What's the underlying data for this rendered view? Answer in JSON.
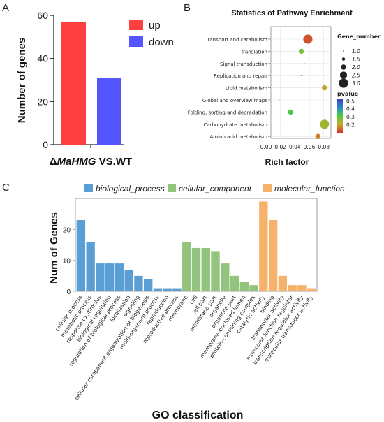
{
  "panels": {
    "a": "A",
    "b": "B",
    "c": "C"
  },
  "chart_data": [
    {
      "type": "bar",
      "panel": "A",
      "categories": [
        "up",
        "down"
      ],
      "values": [
        57,
        31
      ],
      "colors": [
        "#ff4040",
        "#5555ff"
      ],
      "xlabel_prefix": "Δ",
      "xlabel_italic": "MaHMG",
      "xlabel_suffix": " VS.WT",
      "ylabel": "Number of genes",
      "ylim": [
        0,
        60
      ],
      "yticks": [
        0,
        20,
        40,
        60
      ],
      "legend": [
        "up",
        "down"
      ],
      "legend_position": "top-right",
      "grid": false
    },
    {
      "type": "scatter",
      "panel": "B",
      "title": "Statistics of Pathway Enrichment",
      "xlabel": "Rich factor",
      "xlim": [
        0.0,
        0.09
      ],
      "xticks": [
        "0.00",
        "0.02",
        "0.04",
        "0.06",
        "0.08"
      ],
      "categories": [
        "Transport and catabolism",
        "Translation",
        "Signal transduction",
        "Replication and repair",
        "Lipid metabolism",
        "Global and overview maps",
        "Folding, sorting and degradation",
        "Carbohydrate metabolism",
        "Amino acid metabolism"
      ],
      "points": [
        {
          "category": "Transport and catabolism",
          "rich_factor": 0.058,
          "gene_number": 3.0,
          "pvalue": 0.13
        },
        {
          "category": "Translation",
          "rich_factor": 0.049,
          "gene_number": 2.0,
          "pvalue": 0.28
        },
        {
          "category": "Signal transduction",
          "rich_factor": 0.053,
          "gene_number": 1.0,
          "pvalue": 0.18
        },
        {
          "category": "Replication and repair",
          "rich_factor": 0.049,
          "gene_number": 1.0,
          "pvalue": 0.15
        },
        {
          "category": "Lipid metabolism",
          "rich_factor": 0.081,
          "gene_number": 2.0,
          "pvalue": 0.2
        },
        {
          "category": "Global and overview maps",
          "rich_factor": 0.018,
          "gene_number": 1.0,
          "pvalue": 0.5
        },
        {
          "category": "Folding, sorting and degradation",
          "rich_factor": 0.034,
          "gene_number": 2.0,
          "pvalue": 0.32
        },
        {
          "category": "Carbohydrate metabolism",
          "rich_factor": 0.081,
          "gene_number": 3.0,
          "pvalue": 0.24
        },
        {
          "category": "Amino acid metabolism",
          "rich_factor": 0.072,
          "gene_number": 2.0,
          "pvalue": 0.17
        }
      ],
      "size_legend": {
        "title": "Gene_number",
        "values": [
          "1.0",
          "1.5",
          "2.0",
          "2.5",
          "3.0"
        ]
      },
      "color_legend": {
        "title": "pvalue",
        "ticks": [
          "0.5",
          "0.4",
          "0.3",
          "0.2"
        ],
        "range": [
          0.1,
          0.52
        ],
        "colors": [
          "#d2322a",
          "#c8a82a",
          "#4fcc3a",
          "#2a8cd0",
          "#4040c8"
        ]
      },
      "grid": true
    },
    {
      "type": "bar",
      "panel": "C",
      "xlabel": "GO classification",
      "ylabel": "Num of Genes",
      "ylim": [
        0,
        30
      ],
      "yticks": [
        0,
        10,
        20
      ],
      "legend_position": "top",
      "groups": [
        {
          "name": "biological_process",
          "color": "#5a9fd4",
          "label_color": "#3a7fc2",
          "categories": [
            "cellular process",
            "metabolic process",
            "response to stimulus",
            "biological regulation",
            "regulation of biological process",
            "localization",
            "signaling",
            "cellular component organization or biogenesis",
            "multi-organism process",
            "reproduction",
            "reproductive process"
          ],
          "values": [
            23,
            16,
            9,
            9,
            9,
            7,
            5,
            4,
            1,
            1,
            1
          ]
        },
        {
          "name": "cellular_component",
          "color": "#93c47d",
          "label_color": "#6aa84f",
          "categories": [
            "membrane",
            "cell",
            "cell part",
            "membrane part",
            "organelle",
            "organelle part",
            "membrane-enclosed lumen",
            "protein-containing complex"
          ],
          "values": [
            16,
            14,
            14,
            13,
            9,
            5,
            3,
            2
          ]
        },
        {
          "name": "molecular_function",
          "color": "#f6b26b",
          "label_color": "#e69138",
          "categories": [
            "catalytic activity",
            "binding",
            "transporter activity",
            "molecular function regulator",
            "transcription regulator activity",
            "molecular transducer activity"
          ],
          "values": [
            29,
            23,
            5,
            2,
            2,
            1
          ]
        }
      ]
    }
  ]
}
